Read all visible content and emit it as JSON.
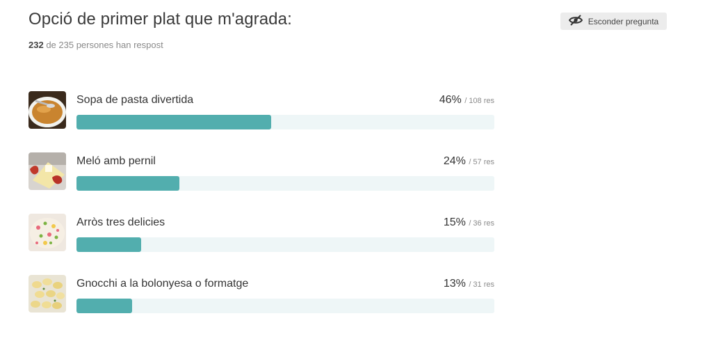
{
  "question": {
    "title": "Opció de primer plat que m'agrada:",
    "answered": "232",
    "total_text": "de 235 persones han respost"
  },
  "hide_button": {
    "label": "Esconder pregunta",
    "icon": "eye-slash-icon"
  },
  "colors": {
    "bar": "#52aeae",
    "track": "#eef6f7"
  },
  "options": [
    {
      "label": "Sopa de pasta divertida",
      "percent": "46%",
      "votes": "/ 108 res",
      "fraction": 0.4655,
      "thumb": "soup-thumbnail"
    },
    {
      "label": "Meló amb pernil",
      "percent": "24%",
      "votes": "/ 57 res",
      "fraction": 0.2457,
      "thumb": "melon-ham-thumbnail"
    },
    {
      "label": "Arròs tres delicies",
      "percent": "15%",
      "votes": "/ 36 res",
      "fraction": 0.1552,
      "thumb": "rice-thumbnail"
    },
    {
      "label": "Gnocchi a la bolonyesa o formatge",
      "percent": "13%",
      "votes": "/ 31 res",
      "fraction": 0.1336,
      "thumb": "gnocchi-thumbnail"
    }
  ]
}
